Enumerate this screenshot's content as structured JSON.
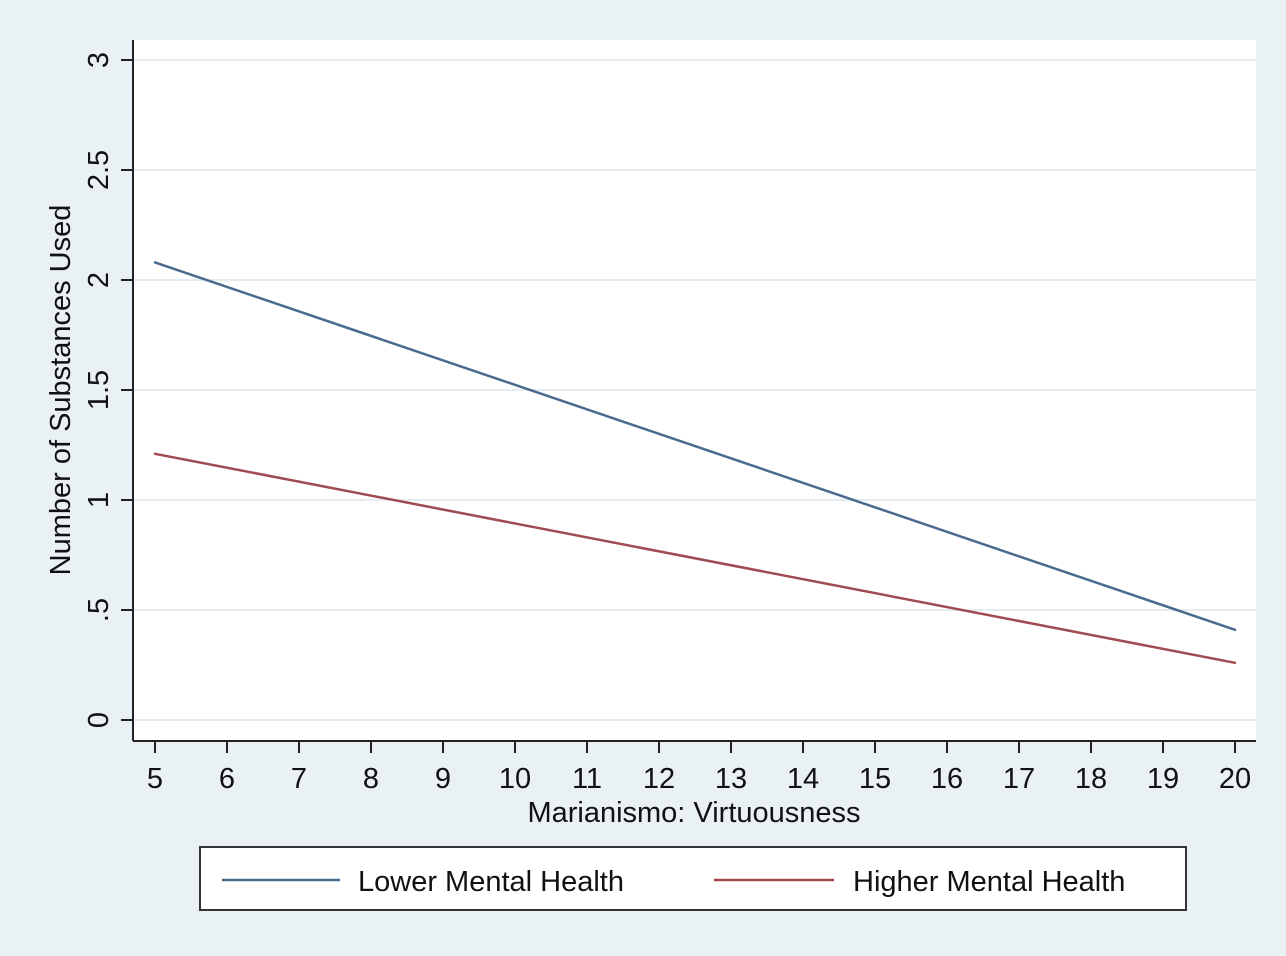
{
  "chart_data": {
    "type": "line",
    "title": "",
    "xlabel": "Marianismo: Virtuousness",
    "ylabel": "Number of Substances Used",
    "xlim": [
      5,
      20
    ],
    "ylim": [
      0,
      3
    ],
    "x_ticks": [
      5,
      6,
      7,
      8,
      9,
      10,
      11,
      12,
      13,
      14,
      15,
      16,
      17,
      18,
      19,
      20
    ],
    "y_ticks": [
      {
        "value": 0,
        "label": "0"
      },
      {
        "value": 0.5,
        "label": ".5"
      },
      {
        "value": 1,
        "label": "1"
      },
      {
        "value": 1.5,
        "label": "1.5"
      },
      {
        "value": 2,
        "label": "2"
      },
      {
        "value": 2.5,
        "label": "2.5"
      },
      {
        "value": 3,
        "label": "3"
      }
    ],
    "grid": "horizontal",
    "legend_position": "bottom",
    "series": [
      {
        "name": "Lower Mental Health",
        "color": "#4a6b8e",
        "x": [
          5,
          20
        ],
        "y": [
          2.08,
          0.41
        ]
      },
      {
        "name": "Higher Mental Health",
        "color": "#a04a52",
        "x": [
          5,
          20
        ],
        "y": [
          1.21,
          0.26
        ]
      }
    ]
  },
  "colors": {
    "background": "#eaf1f5",
    "plot_area": "#ffffff",
    "grid": "#e4ecf1",
    "axis": "#222222"
  }
}
